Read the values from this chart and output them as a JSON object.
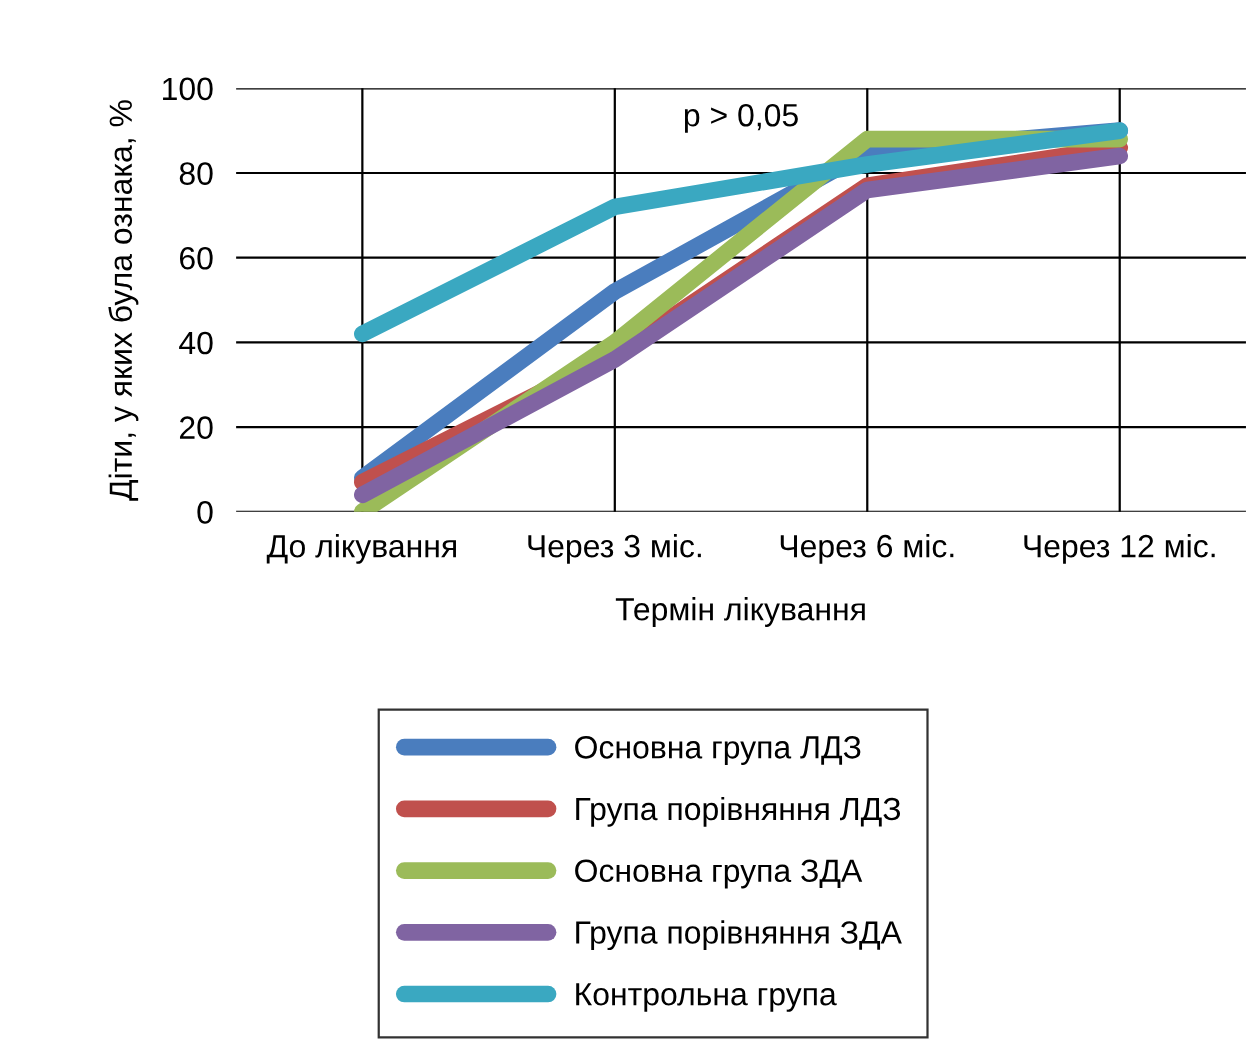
{
  "chart_data": {
    "type": "line",
    "xlabel": "Термін лікування",
    "ylabel": "Діти, у яких була ознака, %",
    "categories": [
      "До лікування",
      "Через 3 міс.",
      "Через 6 міс.",
      "Через 12 міс."
    ],
    "ylim": [
      0,
      100
    ],
    "yticks": [
      0,
      20,
      40,
      60,
      80,
      100
    ],
    "grid": true,
    "legend": "bottom",
    "marker": "none",
    "line_style": "solid",
    "annotations": [
      "p > 0,05"
    ],
    "series": [
      {
        "name": "Основна група ЛДЗ",
        "color": "#4a7dbe",
        "values": [
          8,
          52,
          85,
          90
        ]
      },
      {
        "name": "Група порівняння ЛДЗ",
        "color": "#c0504d",
        "values": [
          7,
          37,
          77,
          86
        ]
      },
      {
        "name": "Основна група ЗДА",
        "color": "#9bbb59",
        "values": [
          0,
          40,
          88,
          88
        ]
      },
      {
        "name": "Група порівняння ЗДА",
        "color": "#8064a2",
        "values": [
          4,
          36,
          76,
          84
        ]
      },
      {
        "name": "Контрольна група",
        "color": "#3aa8c1",
        "values": [
          42,
          72,
          82,
          90
        ]
      }
    ]
  }
}
